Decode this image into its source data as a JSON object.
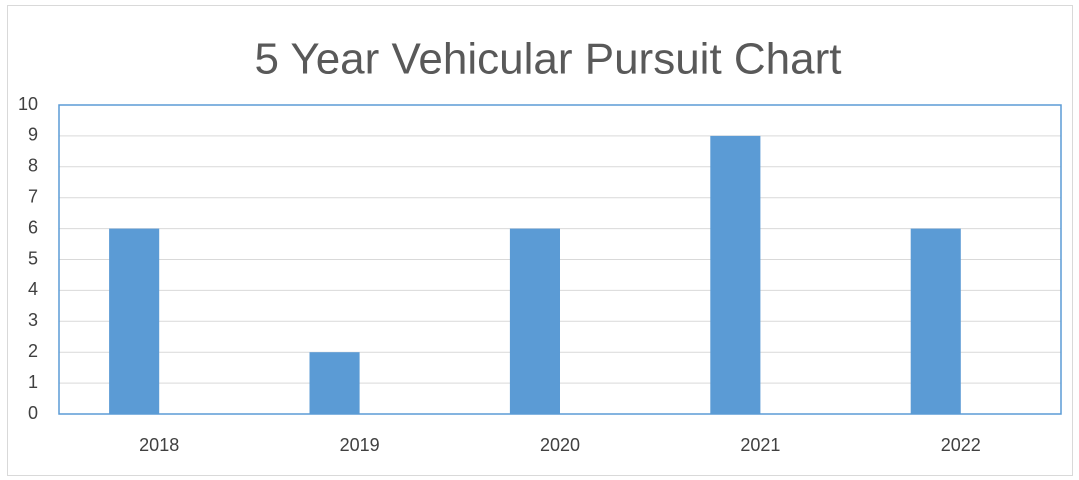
{
  "chart_data": {
    "type": "bar",
    "title": "5 Year Vehicular Pursuit Chart",
    "categories": [
      "2018",
      "2019",
      "2020",
      "2021",
      "2022"
    ],
    "values": [
      6,
      2,
      6,
      9,
      6
    ],
    "color": "#5b9bd5",
    "ylim": [
      0,
      10
    ],
    "yticks": [
      0,
      1,
      2,
      3,
      4,
      5,
      6,
      7,
      8,
      9,
      10
    ],
    "grid": true
  }
}
